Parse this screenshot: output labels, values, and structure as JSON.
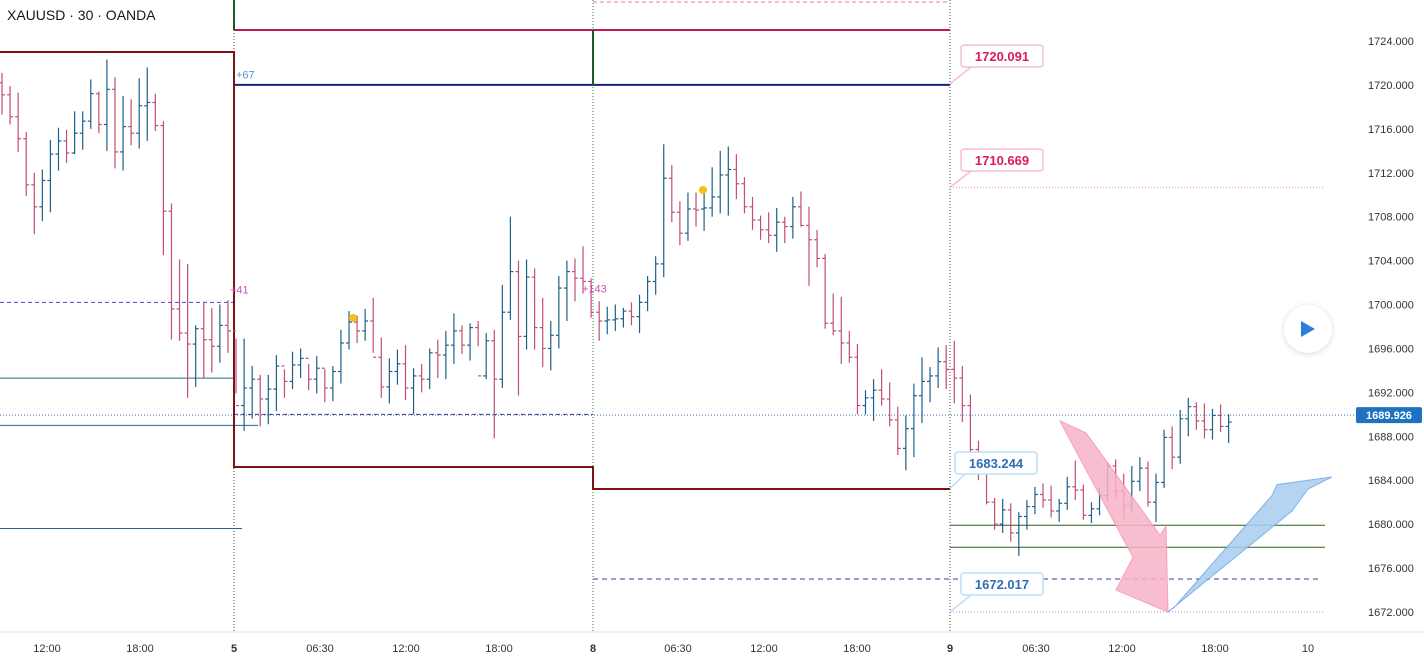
{
  "header": {
    "symbol": "XAUUSD · 30 · OANDA"
  },
  "colors": {
    "up": "#1e5f8c",
    "down": "#c04d7a",
    "price_label_bg": "#1e72c0",
    "arrow_down": "#f7b3c7",
    "arrow_up": "#a9cdf0"
  },
  "chart_data": {
    "type": "bar",
    "instrument": "XAUUSD",
    "timeframe": "30",
    "source": "OANDA",
    "y_axis": {
      "ticks": [
        1724,
        1720,
        1716,
        1712,
        1708,
        1704,
        1700,
        1696,
        1692,
        1688,
        1684,
        1680,
        1676,
        1672
      ],
      "tick_labels": [
        "1724.000",
        "1720.000",
        "1716.000",
        "1712.000",
        "1708.000",
        "1704.000",
        "1700.000",
        "1696.000",
        "1692.000",
        "1688.000",
        "1684.000",
        "1680.000",
        "1676.000",
        "1672.000"
      ]
    },
    "x_axis": {
      "tick_labels": [
        "12:00",
        "18:00",
        "5",
        "06:30",
        "12:00",
        "18:00",
        "8",
        "06:30",
        "12:00",
        "18:00",
        "9",
        "06:30",
        "12:00",
        "18:00",
        "10"
      ],
      "session_breaks": [
        "5",
        "8",
        "9"
      ]
    },
    "current_price": {
      "value": 1689.926,
      "label": "1689.926"
    },
    "annotations": [
      {
        "label": "1720.091",
        "value": 1720.091,
        "style": "pink"
      },
      {
        "label": "1710.669",
        "value": 1710.669,
        "style": "pink"
      },
      {
        "label": "1683.244",
        "value": 1683.244,
        "style": "blue"
      },
      {
        "label": "1672.017",
        "value": 1672.017,
        "style": "blue"
      }
    ],
    "small_labels": [
      "+67",
      "+41",
      "+143"
    ],
    "levels": [
      {
        "name": "pivot-high",
        "value": 1723.0
      },
      {
        "name": "blue-resistance",
        "value": 1720.0
      },
      {
        "name": "magenta-level",
        "value": 1725.0
      },
      {
        "name": "pivot-low-1",
        "value": 1685.2
      },
      {
        "name": "pivot-low-2",
        "value": 1683.2
      },
      {
        "name": "mid-dashed",
        "value": 1700.2
      },
      {
        "name": "lower-dashed-1",
        "value": 1690.0
      },
      {
        "name": "lower-dashed-2",
        "value": 1675.0
      },
      {
        "name": "green-1",
        "value": 1679.9
      },
      {
        "name": "green-2",
        "value": 1677.9
      },
      {
        "name": "teal-1",
        "value": 1693.3
      },
      {
        "name": "teal-2",
        "value": 1689.0
      },
      {
        "name": "teal-3",
        "value": 1679.6
      }
    ],
    "forecast": [
      {
        "from": 1689.4,
        "to": 1672.0,
        "direction": "down"
      },
      {
        "from": 1672.0,
        "to": 1684.3,
        "direction": "up"
      }
    ],
    "bars": [
      [
        1720.2,
        1721.1,
        1717.3,
        1719.1
      ],
      [
        1719.1,
        1719.9,
        1716.4,
        1717.1
      ],
      [
        1717.1,
        1719.3,
        1713.9,
        1715.1
      ],
      [
        1715.1,
        1715.7,
        1709.9,
        1710.9
      ],
      [
        1710.9,
        1712.0,
        1706.4,
        1708.9
      ],
      [
        1708.9,
        1712.3,
        1707.6,
        1711.3
      ],
      [
        1711.3,
        1715.0,
        1708.4,
        1713.7
      ],
      [
        1713.7,
        1716.1,
        1712.2,
        1714.9
      ],
      [
        1714.9,
        1715.9,
        1712.9,
        1713.8
      ],
      [
        1713.8,
        1717.6,
        1713.7,
        1715.6
      ],
      [
        1715.6,
        1717.6,
        1714.1,
        1716.7
      ],
      [
        1716.7,
        1720.5,
        1716.0,
        1719.2
      ],
      [
        1719.2,
        1719.4,
        1715.6,
        1716.4
      ],
      [
        1716.4,
        1722.3,
        1714.0,
        1719.6
      ],
      [
        1719.6,
        1720.7,
        1712.4,
        1713.9
      ],
      [
        1713.9,
        1719.0,
        1712.2,
        1716.2
      ],
      [
        1716.2,
        1718.7,
        1714.5,
        1715.6
      ],
      [
        1715.6,
        1720.6,
        1714.2,
        1718.1
      ],
      [
        1718.1,
        1721.6,
        1714.9,
        1718.4
      ],
      [
        1718.4,
        1719.2,
        1715.8,
        1716.3
      ],
      [
        1716.3,
        1716.7,
        1704.5,
        1708.5
      ],
      [
        1708.5,
        1709.2,
        1696.8,
        1699.6
      ],
      [
        1699.6,
        1704.1,
        1696.7,
        1697.4
      ],
      [
        1697.4,
        1703.7,
        1691.5,
        1696.4
      ],
      [
        1696.4,
        1698.1,
        1692.5,
        1697.8
      ],
      [
        1697.8,
        1700.2,
        1693.3,
        1696.8
      ],
      [
        1696.8,
        1699.7,
        1693.8,
        1696.2
      ],
      [
        1696.2,
        1700.0,
        1694.7,
        1698.1
      ],
      [
        1698.1,
        1700.4,
        1695.6,
        1697.6
      ],
      [
        1697.6,
        1696.9,
        1691.9,
        1690.8
      ],
      [
        1690.8,
        1696.9,
        1688.5,
        1692.4
      ],
      [
        1692.4,
        1694.4,
        1689.6,
        1693.2
      ],
      [
        1693.2,
        1693.6,
        1688.9,
        1691.4
      ],
      [
        1691.4,
        1693.6,
        1689.1,
        1692.3
      ],
      [
        1692.3,
        1695.4,
        1690.3,
        1694.4
      ],
      [
        1694.4,
        1694.1,
        1691.5,
        1693.0
      ],
      [
        1693.0,
        1695.7,
        1692.3,
        1694.5
      ],
      [
        1694.5,
        1696.0,
        1693.3,
        1695.1
      ],
      [
        1695.1,
        1694.6,
        1692.2,
        1693.2
      ],
      [
        1693.2,
        1695.3,
        1691.9,
        1694.2
      ],
      [
        1694.2,
        1694.1,
        1691.1,
        1692.4
      ],
      [
        1692.4,
        1694.4,
        1691.2,
        1693.9
      ],
      [
        1693.9,
        1697.7,
        1692.8,
        1696.5
      ],
      [
        1696.5,
        1699.4,
        1695.9,
        1698.4
      ],
      [
        1698.4,
        1699.0,
        1696.5,
        1697.6
      ],
      [
        1697.6,
        1699.6,
        1696.7,
        1698.5
      ],
      [
        1698.5,
        1700.6,
        1695.6,
        1695.2
      ],
      [
        1695.2,
        1697.0,
        1691.5,
        1692.5
      ],
      [
        1692.5,
        1695.1,
        1691.0,
        1693.9
      ],
      [
        1693.9,
        1695.9,
        1692.7,
        1694.6
      ],
      [
        1694.6,
        1696.3,
        1691.3,
        1692.4
      ],
      [
        1692.4,
        1694.2,
        1690.0,
        1693.5
      ],
      [
        1693.5,
        1694.6,
        1692.0,
        1693.2
      ],
      [
        1693.2,
        1696.0,
        1692.3,
        1695.6
      ],
      [
        1695.6,
        1696.8,
        1693.3,
        1695.4
      ],
      [
        1695.4,
        1697.6,
        1693.2,
        1696.3
      ],
      [
        1696.3,
        1699.2,
        1694.6,
        1697.6
      ],
      [
        1697.6,
        1698.1,
        1695.5,
        1696.3
      ],
      [
        1696.3,
        1698.3,
        1694.9,
        1697.9
      ],
      [
        1697.9,
        1698.5,
        1696.2,
        1693.5
      ],
      [
        1693.5,
        1697.4,
        1693.2,
        1696.7
      ],
      [
        1696.7,
        1697.7,
        1687.8,
        1693.2
      ],
      [
        1693.2,
        1701.8,
        1692.4,
        1699.3
      ],
      [
        1699.3,
        1708.0,
        1698.6,
        1703.0
      ],
      [
        1703.0,
        1704.0,
        1691.7,
        1697.1
      ],
      [
        1697.1,
        1704.1,
        1695.9,
        1702.5
      ],
      [
        1702.5,
        1703.3,
        1695.9,
        1697.9
      ],
      [
        1697.9,
        1700.6,
        1694.3,
        1696.0
      ],
      [
        1696.0,
        1698.5,
        1694.0,
        1697.2
      ],
      [
        1697.2,
        1702.6,
        1696.0,
        1701.5
      ],
      [
        1701.5,
        1704.0,
        1698.5,
        1703.0
      ],
      [
        1703.0,
        1704.2,
        1700.3,
        1702.4
      ],
      [
        1702.4,
        1705.3,
        1701.0,
        1702.1
      ],
      [
        1702.1,
        1702.4,
        1698.8,
        1699.3
      ],
      [
        1699.3,
        1700.3,
        1696.7,
        1698.5
      ],
      [
        1698.5,
        1699.8,
        1697.3,
        1698.6
      ],
      [
        1698.6,
        1700.0,
        1697.6,
        1698.7
      ],
      [
        1698.7,
        1699.7,
        1697.9,
        1699.4
      ],
      [
        1699.4,
        1700.2,
        1698.1,
        1698.9
      ],
      [
        1698.9,
        1700.9,
        1697.4,
        1700.2
      ],
      [
        1700.2,
        1702.6,
        1699.4,
        1702.1
      ],
      [
        1702.1,
        1704.4,
        1700.9,
        1703.7
      ],
      [
        1703.7,
        1714.6,
        1702.5,
        1711.5
      ],
      [
        1711.5,
        1712.7,
        1707.5,
        1708.4
      ],
      [
        1708.4,
        1709.4,
        1705.4,
        1706.5
      ],
      [
        1706.5,
        1710.2,
        1705.8,
        1708.7
      ],
      [
        1708.7,
        1710.2,
        1707.1,
        1708.6
      ],
      [
        1708.7,
        1710.6,
        1706.7,
        1708.8
      ],
      [
        1708.8,
        1712.5,
        1708.0,
        1709.8
      ],
      [
        1709.8,
        1714.0,
        1708.3,
        1711.8
      ],
      [
        1711.8,
        1714.4,
        1708.1,
        1712.3
      ],
      [
        1712.3,
        1713.7,
        1709.6,
        1711.0
      ],
      [
        1711.0,
        1711.6,
        1708.3,
        1708.9
      ],
      [
        1708.9,
        1709.8,
        1706.8,
        1707.7
      ],
      [
        1707.7,
        1708.1,
        1705.9,
        1706.8
      ],
      [
        1706.8,
        1708.4,
        1705.6,
        1706.3
      ],
      [
        1706.3,
        1708.8,
        1704.8,
        1707.5
      ],
      [
        1707.5,
        1708.0,
        1705.6,
        1707.1
      ],
      [
        1707.1,
        1709.8,
        1706.0,
        1708.9
      ],
      [
        1708.9,
        1710.3,
        1707.1,
        1707.2
      ],
      [
        1707.2,
        1708.9,
        1701.7,
        1705.9
      ],
      [
        1705.9,
        1706.8,
        1703.4,
        1704.2
      ],
      [
        1704.2,
        1704.6,
        1697.8,
        1698.3
      ],
      [
        1698.3,
        1701.0,
        1697.2,
        1697.6
      ],
      [
        1697.6,
        1700.7,
        1694.6,
        1696.5
      ],
      [
        1696.5,
        1697.6,
        1694.7,
        1695.2
      ],
      [
        1695.2,
        1696.4,
        1690.0,
        1690.8
      ],
      [
        1690.8,
        1692.2,
        1690.0,
        1691.5
      ],
      [
        1691.5,
        1693.2,
        1689.4,
        1692.2
      ],
      [
        1692.2,
        1694.1,
        1690.8,
        1691.4
      ],
      [
        1691.4,
        1692.9,
        1688.9,
        1689.5
      ],
      [
        1689.5,
        1690.7,
        1686.3,
        1686.9
      ],
      [
        1686.9,
        1689.9,
        1684.9,
        1688.7
      ],
      [
        1688.7,
        1692.8,
        1686.1,
        1691.7
      ],
      [
        1691.7,
        1695.2,
        1689.2,
        1693.0
      ],
      [
        1693.0,
        1694.3,
        1691.1,
        1693.5
      ],
      [
        1693.5,
        1696.1,
        1692.4,
        1694.8
      ],
      [
        1694.8,
        1696.3,
        1692.3,
        1694.1
      ],
      [
        1694.1,
        1696.7,
        1691.0,
        1693.3
      ],
      [
        1693.3,
        1694.4,
        1689.3,
        1690.8
      ],
      [
        1690.8,
        1691.8,
        1685.9,
        1686.8
      ],
      [
        1686.8,
        1687.6,
        1684.0,
        1684.9
      ],
      [
        1684.9,
        1685.2,
        1681.8,
        1682.0
      ],
      [
        1682.0,
        1682.4,
        1679.5,
        1680.0
      ],
      [
        1680.0,
        1682.3,
        1679.2,
        1681.3
      ],
      [
        1681.3,
        1681.9,
        1678.4,
        1679.2
      ],
      [
        1679.2,
        1681.1,
        1677.1,
        1680.7
      ],
      [
        1680.7,
        1682.2,
        1679.5,
        1681.6
      ],
      [
        1681.6,
        1683.4,
        1680.9,
        1682.7
      ],
      [
        1682.7,
        1683.7,
        1681.5,
        1682.2
      ],
      [
        1682.2,
        1683.5,
        1680.6,
        1681.2
      ],
      [
        1681.2,
        1682.3,
        1680.2,
        1681.9
      ],
      [
        1681.9,
        1684.3,
        1681.3,
        1683.4
      ],
      [
        1683.4,
        1685.8,
        1682.2,
        1683.1
      ],
      [
        1683.1,
        1683.6,
        1680.4,
        1680.8
      ],
      [
        1680.8,
        1682.0,
        1680.1,
        1681.4
      ],
      [
        1681.4,
        1683.3,
        1680.8,
        1682.6
      ],
      [
        1682.6,
        1685.6,
        1682.1,
        1685.3
      ],
      [
        1685.3,
        1685.9,
        1682.3,
        1683.0
      ],
      [
        1683.0,
        1684.6,
        1680.5,
        1681.7
      ],
      [
        1681.7,
        1685.3,
        1681.1,
        1683.9
      ],
      [
        1683.9,
        1686.1,
        1683.0,
        1685.1
      ],
      [
        1685.1,
        1685.7,
        1681.6,
        1682.0
      ],
      [
        1682.0,
        1684.6,
        1680.2,
        1683.8
      ],
      [
        1683.8,
        1688.6,
        1683.3,
        1687.9
      ],
      [
        1687.9,
        1688.9,
        1685.0,
        1686.1
      ],
      [
        1686.1,
        1690.4,
        1685.5,
        1689.6
      ],
      [
        1689.6,
        1691.5,
        1688.0,
        1690.7
      ],
      [
        1690.7,
        1691.1,
        1688.6,
        1689.4
      ],
      [
        1689.4,
        1691.0,
        1687.8,
        1688.6
      ],
      [
        1688.6,
        1690.5,
        1687.7,
        1689.9
      ],
      [
        1689.9,
        1690.9,
        1688.4,
        1688.9
      ],
      [
        1688.9,
        1690.0,
        1687.4,
        1689.3
      ]
    ]
  }
}
